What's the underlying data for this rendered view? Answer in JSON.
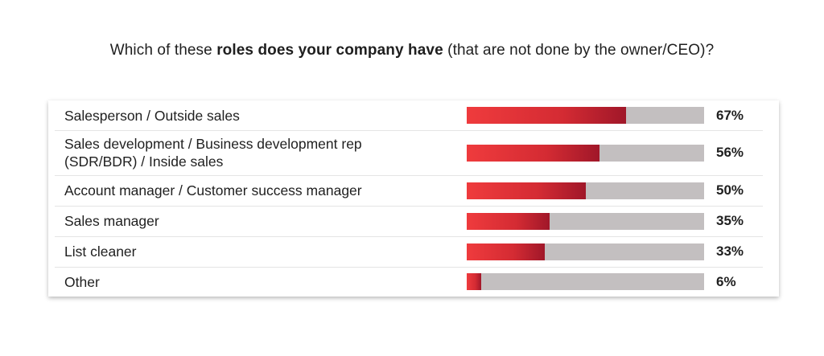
{
  "title": {
    "part1": "Which of these ",
    "part2": "roles does your company have",
    "part3": " (that are not done by the owner/CEO)?"
  },
  "colors": {
    "bar_fill_start": "#ef3b3d",
    "bar_fill_end": "#a01729",
    "bar_track": "#c3bfc0"
  },
  "chart_data": {
    "type": "bar",
    "orientation": "horizontal",
    "title": "Which of these roles does your company have (that are not done by the owner/CEO)?",
    "categories": [
      "Salesperson / Outside sales",
      "Sales development /  Business development rep (SDR/BDR) / Inside sales",
      "Account manager / Customer success manager",
      "Sales manager",
      "List cleaner",
      "Other"
    ],
    "label_lines": [
      [
        "Salesperson / Outside sales"
      ],
      [
        "Sales development /  Business development rep",
        "(SDR/BDR) / Inside sales"
      ],
      [
        "Account manager / Customer success manager"
      ],
      [
        "Sales manager"
      ],
      [
        "List cleaner"
      ],
      [
        "Other"
      ]
    ],
    "values": [
      67,
      56,
      50,
      35,
      33,
      6
    ],
    "value_labels": [
      "67%",
      "56%",
      "50%",
      "35%",
      "33%",
      "6%"
    ],
    "xlim": [
      0,
      100
    ],
    "unit": "%"
  }
}
